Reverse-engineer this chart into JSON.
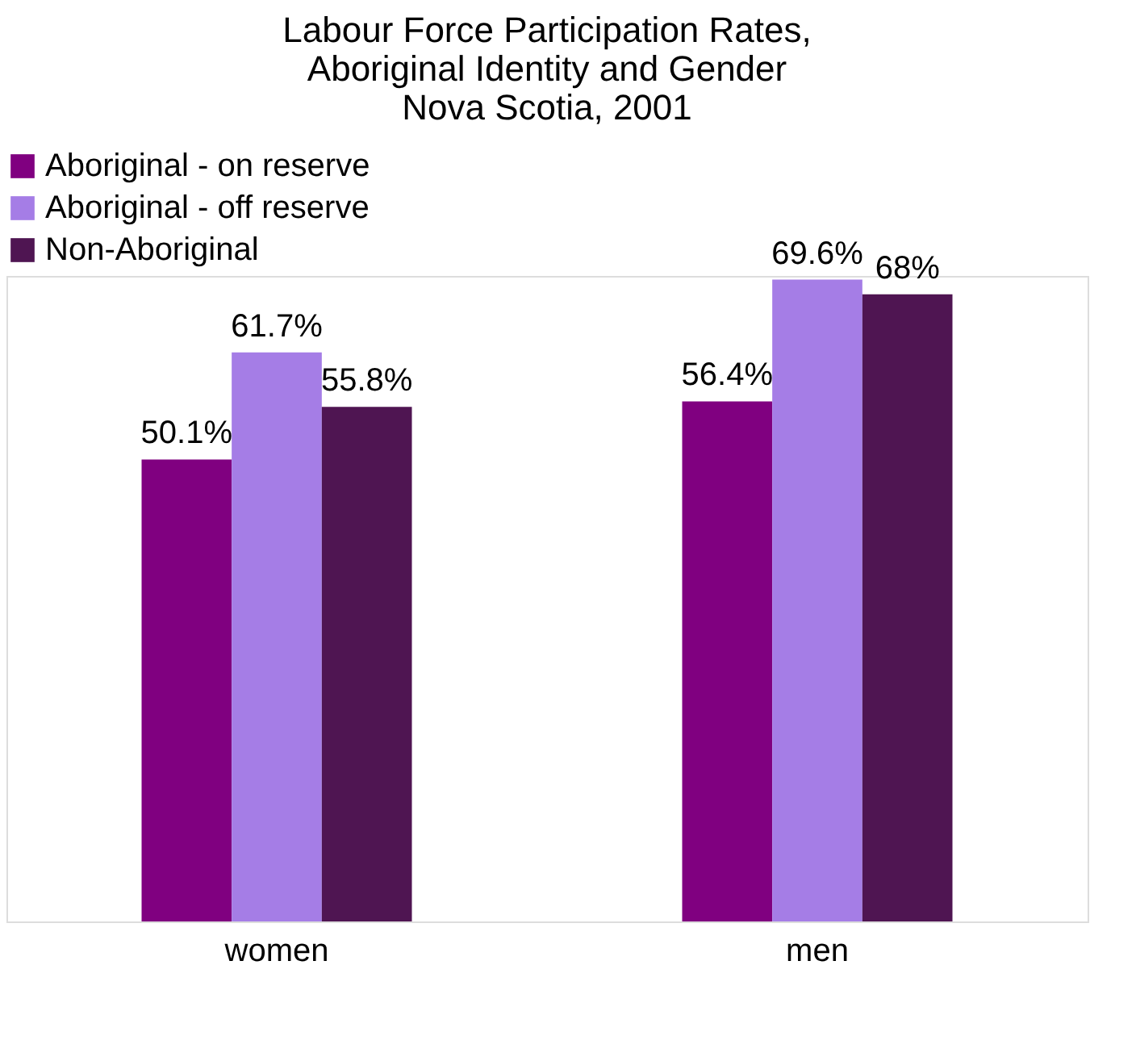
{
  "chart_data": {
    "type": "bar",
    "title": "Labour Force Participation Rates,\nAboriginal Identity and Gender\nNova Scotia, 2001",
    "categories": [
      "women",
      "men"
    ],
    "series": [
      {
        "name": "Aboriginal - on reserve",
        "color": "#800080",
        "values": [
          50.1,
          56.4
        ],
        "value_labels": [
          "50.1%",
          "56.4%"
        ]
      },
      {
        "name": "Aboriginal - off reserve",
        "color": "#a57de6",
        "values": [
          61.7,
          69.6
        ],
        "value_labels": [
          "61.7%",
          "69.6%"
        ]
      },
      {
        "name": "Non-Aboriginal",
        "color": "#4f1552",
        "values": [
          55.8,
          68
        ],
        "value_labels": [
          "55.8%",
          "68%"
        ]
      }
    ],
    "legend": "top left"
  }
}
